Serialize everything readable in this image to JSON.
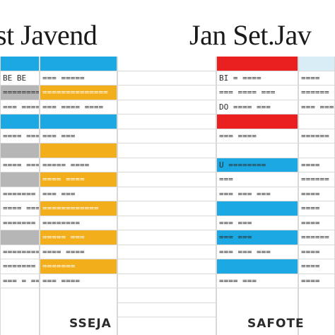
{
  "titles": {
    "left": "st Javend",
    "right": "Jan Set.Jav"
  },
  "columns": [
    {
      "name": "col-a",
      "rows": [
        {
          "style": "blue",
          "text": ""
        },
        {
          "style": "plain",
          "text": "BE  BE"
        },
        {
          "style": "gray",
          "text": "========"
        },
        {
          "style": "plain",
          "text": "=== ====="
        },
        {
          "style": "blue",
          "text": ""
        },
        {
          "style": "plain",
          "text": "==== ==="
        },
        {
          "style": "gray",
          "text": ""
        },
        {
          "style": "plain",
          "text": "==== ==="
        },
        {
          "style": "gray",
          "text": ""
        },
        {
          "style": "plain",
          "text": "======="
        },
        {
          "style": "plain",
          "text": "==== ==="
        },
        {
          "style": "plain",
          "text": "======="
        },
        {
          "style": "gray",
          "text": ""
        },
        {
          "style": "plain",
          "text": "========"
        },
        {
          "style": "plain",
          "text": "======="
        },
        {
          "style": "plain",
          "text": "=== = ==="
        }
      ]
    },
    {
      "name": "col-b",
      "rows": [
        {
          "style": "blue",
          "text": ""
        },
        {
          "style": "plain",
          "text": "=== ====="
        },
        {
          "style": "orange",
          "text": "=============="
        },
        {
          "style": "plain",
          "text": "=== ==== ===="
        },
        {
          "style": "blue",
          "text": ""
        },
        {
          "style": "plain",
          "text": "=== ==="
        },
        {
          "style": "orange",
          "text": ""
        },
        {
          "style": "plain",
          "text": "===== ===="
        },
        {
          "style": "orange",
          "text": "==== ===="
        },
        {
          "style": "plain",
          "text": "=== ==="
        },
        {
          "style": "orange",
          "text": "============"
        },
        {
          "style": "plain",
          "text": "========"
        },
        {
          "style": "orange",
          "text": "===== ==="
        },
        {
          "style": "plain",
          "text": "====  ===="
        },
        {
          "style": "orange",
          "text": "======="
        },
        {
          "style": "plain",
          "text": "===  ===="
        }
      ]
    },
    {
      "name": "col-c",
      "rows": [
        {
          "style": "plain",
          "text": ""
        },
        {
          "style": "plain",
          "text": ""
        },
        {
          "style": "plain",
          "text": ""
        },
        {
          "style": "plain",
          "text": ""
        },
        {
          "style": "plain",
          "text": ""
        },
        {
          "style": "plain",
          "text": ""
        },
        {
          "style": "plain",
          "text": ""
        },
        {
          "style": "plain",
          "text": ""
        },
        {
          "style": "plain",
          "text": ""
        },
        {
          "style": "plain",
          "text": ""
        },
        {
          "style": "plain",
          "text": ""
        },
        {
          "style": "plain",
          "text": ""
        },
        {
          "style": "plain",
          "text": ""
        },
        {
          "style": "plain",
          "text": ""
        },
        {
          "style": "plain",
          "text": ""
        },
        {
          "style": "plain",
          "text": ""
        },
        {
          "style": "plain",
          "text": ""
        },
        {
          "style": "plain",
          "text": ""
        }
      ]
    },
    {
      "name": "col-d",
      "rows": [
        {
          "style": "red",
          "text": ""
        },
        {
          "style": "plain",
          "text": "BI  = ===="
        },
        {
          "style": "plain",
          "text": "=== ==== ==="
        },
        {
          "style": "plain",
          "text": "DO  ==== ==="
        },
        {
          "style": "red",
          "text": ""
        },
        {
          "style": "plain",
          "text": "=== ===="
        },
        {
          "style": "plain",
          "text": ""
        },
        {
          "style": "blue",
          "text": "U  ========"
        },
        {
          "style": "plain",
          "text": "==="
        },
        {
          "style": "plain",
          "text": "=== === ==="
        },
        {
          "style": "blue",
          "text": ""
        },
        {
          "style": "plain",
          "text": "=== ==="
        },
        {
          "style": "blue",
          "text": "=== ==="
        },
        {
          "style": "plain",
          "text": "=== === ==="
        },
        {
          "style": "blue",
          "text": ""
        },
        {
          "style": "plain",
          "text": "==== ==="
        }
      ]
    },
    {
      "name": "col-e",
      "rows": [
        {
          "style": "lblue",
          "text": ""
        },
        {
          "style": "plain",
          "text": "===="
        },
        {
          "style": "plain",
          "text": "======"
        },
        {
          "style": "plain",
          "text": "=== ===="
        },
        {
          "style": "plain",
          "text": ""
        },
        {
          "style": "plain",
          "text": "======"
        },
        {
          "style": "plain",
          "text": ""
        },
        {
          "style": "plain",
          "text": "===="
        },
        {
          "style": "plain",
          "text": "======"
        },
        {
          "style": "plain",
          "text": "===="
        },
        {
          "style": "plain",
          "text": "===="
        },
        {
          "style": "plain",
          "text": "===="
        },
        {
          "style": "plain",
          "text": "======"
        },
        {
          "style": "plain",
          "text": "===="
        },
        {
          "style": "plain",
          "text": "===="
        },
        {
          "style": "plain",
          "text": "===="
        }
      ]
    }
  ],
  "bottom_labels": {
    "left": "SSEJA",
    "right": "SAFOTE"
  }
}
